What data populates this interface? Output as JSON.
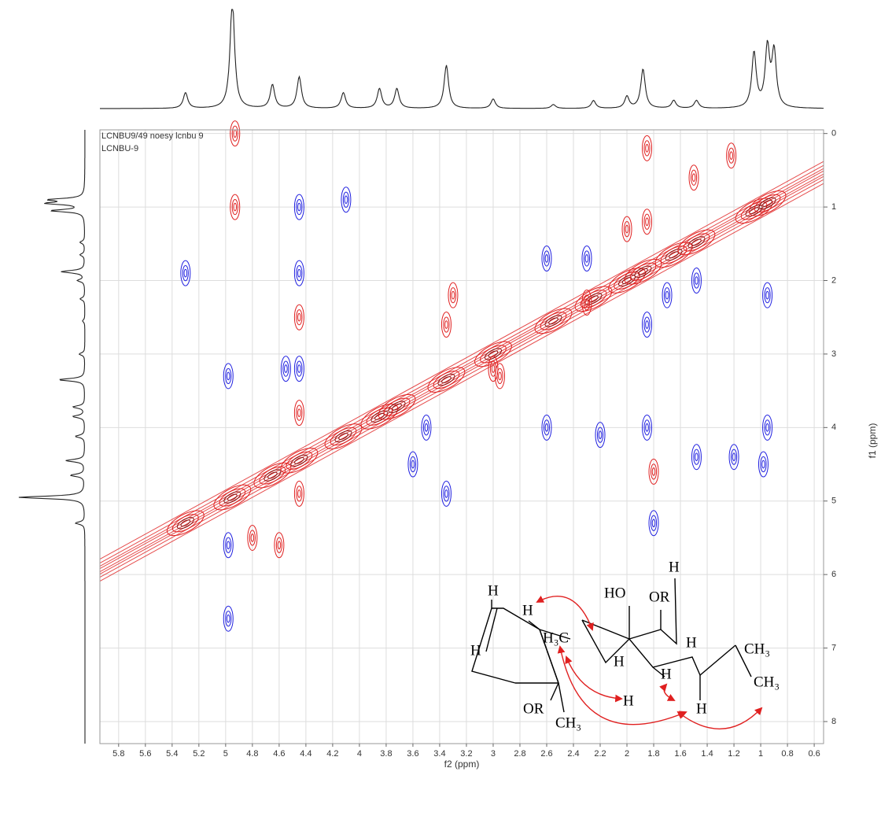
{
  "chart_data": {
    "type": "noesy",
    "header": [
      "LCNBU9/49 noesy lcnbu 9",
      "LCNBU-9"
    ],
    "xlabel": "f2 (ppm)",
    "ylabel": "f1 (ppm)",
    "xlim": [
      5.94,
      0.53
    ],
    "ylim": [
      -0.05,
      8.3
    ],
    "xticks": [
      5.8,
      5.6,
      5.4,
      5.2,
      5.0,
      4.8,
      4.6,
      4.4,
      4.2,
      4.0,
      3.8,
      3.6,
      3.4,
      3.2,
      3.0,
      2.8,
      2.6,
      2.4,
      2.2,
      2.0,
      1.8,
      1.6,
      1.4,
      1.2,
      1.0,
      0.8,
      0.6
    ],
    "yticks": [
      0,
      1,
      2,
      3,
      4,
      5,
      6,
      7,
      8
    ],
    "grid": true,
    "projection": {
      "color": "#222",
      "ppm": [
        5.3,
        4.95,
        4.65,
        4.45,
        4.12,
        3.85,
        3.72,
        3.35,
        3.0,
        2.55,
        2.25,
        2.0,
        1.88,
        1.65,
        1.48,
        1.05,
        0.95,
        0.9
      ],
      "height": [
        0.2,
        1.4,
        0.3,
        0.4,
        0.2,
        0.25,
        0.25,
        0.55,
        0.12,
        0.05,
        0.1,
        0.15,
        0.5,
        0.1,
        0.1,
        0.7,
        0.75,
        0.7
      ]
    },
    "diagonal": {
      "color": "#e02020",
      "ppm": [
        5.3,
        4.95,
        4.65,
        4.45,
        4.12,
        3.85,
        3.72,
        3.35,
        3.0,
        2.55,
        2.25,
        2.0,
        1.88,
        1.65,
        1.48,
        1.05,
        0.95
      ]
    },
    "positive": {
      "color": "#e02020",
      "x": [
        4.93,
        4.93,
        1.85,
        1.85,
        2.0,
        1.5,
        1.22,
        2.3,
        3.3,
        3.35,
        4.45,
        4.45,
        3.0,
        4.45,
        2.95,
        1.8,
        4.8,
        4.6
      ],
      "y": [
        0.0,
        1.0,
        0.2,
        1.2,
        1.3,
        0.6,
        0.3,
        2.3,
        2.2,
        2.6,
        2.5,
        3.8,
        3.2,
        4.9,
        3.3,
        4.6,
        5.5,
        5.6
      ]
    },
    "negative": {
      "color": "#2020e0",
      "x": [
        4.98,
        4.98,
        4.98,
        4.45,
        4.45,
        4.45,
        2.6,
        2.3,
        1.85,
        1.85,
        1.7,
        1.48,
        0.95,
        2.6,
        0.95,
        2.2,
        1.2,
        1.48,
        0.98,
        3.5,
        4.55,
        5.3,
        3.6,
        3.35,
        4.1,
        1.8
      ],
      "y": [
        3.3,
        5.6,
        6.6,
        1.0,
        1.9,
        3.2,
        1.7,
        1.7,
        2.6,
        4.0,
        2.2,
        2.0,
        2.2,
        4.0,
        4.0,
        4.1,
        4.4,
        4.4,
        4.5,
        4.0,
        3.2,
        1.9,
        4.5,
        4.9,
        0.9,
        5.3
      ]
    },
    "structure": [
      "H",
      "H",
      "H",
      "H₃C",
      "HO",
      "OR",
      "H",
      "H",
      "H",
      "H",
      "H",
      "H",
      "CH₃",
      "CH₃",
      "OR",
      "CH₃"
    ]
  }
}
